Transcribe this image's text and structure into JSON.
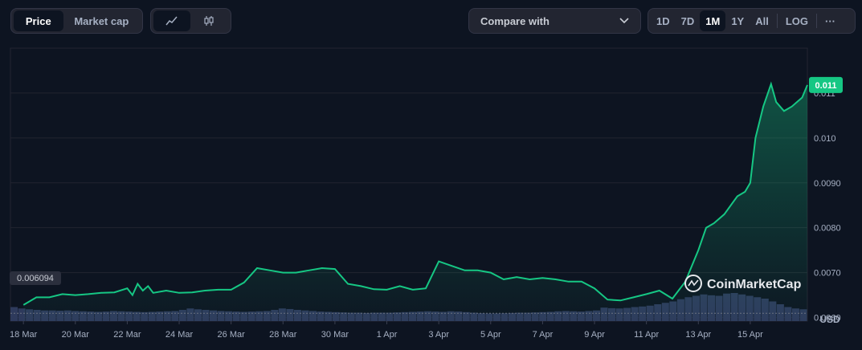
{
  "toolbar": {
    "tabs": [
      "Price",
      "Market cap"
    ],
    "active_tab": "Price",
    "chart_types": [
      "line-chart-icon",
      "candlestick-icon"
    ],
    "compare_label": "Compare with",
    "ranges": [
      "1D",
      "7D",
      "1M",
      "1Y",
      "All"
    ],
    "active_range": "1M",
    "log_label": "LOG",
    "more_label": "···"
  },
  "watermark": "CoinMarketCap",
  "currency": "USD",
  "colors": {
    "line": "#16c784",
    "background": "#0d1421",
    "volume": "#2e3a5c",
    "badge": "#16c784"
  },
  "chart_data": {
    "type": "area",
    "y_ticks": [
      {
        "value": 0.006,
        "label": "0.0060"
      },
      {
        "value": 0.007,
        "label": "0.0070"
      },
      {
        "value": 0.008,
        "label": "0.0080"
      },
      {
        "value": 0.009,
        "label": "0.0090"
      },
      {
        "value": 0.01,
        "label": "0.010"
      },
      {
        "value": 0.011,
        "label": "0.011"
      }
    ],
    "ylim": [
      0.00592,
      0.012
    ],
    "x_ticks": [
      "18 Mar",
      "20 Mar",
      "22 Mar",
      "24 Mar",
      "26 Mar",
      "28 Mar",
      "30 Mar",
      "1 Apr",
      "3 Apr",
      "5 Apr",
      "7 Apr",
      "9 Apr",
      "11 Apr",
      "13 Apr",
      "15 Apr"
    ],
    "x_domain_days": [
      -0.5,
      30.2
    ],
    "open_price_label": "0.006094",
    "open_price": 0.006094,
    "current_price_label": "0.011",
    "current_price": 0.01118,
    "series": [
      {
        "x": [
          0,
          0.5,
          1,
          1.5,
          2,
          2.5,
          3,
          3.5,
          4,
          4.2,
          4.4,
          4.6,
          4.8,
          5,
          5.5,
          6,
          6.5,
          7,
          7.5,
          8,
          8.5,
          9,
          9.5,
          10,
          10.5,
          11,
          11.5,
          12,
          12.5,
          13,
          13.5,
          14,
          14.5,
          15,
          15.5,
          16,
          16.5,
          17,
          17.5,
          18,
          18.5,
          19,
          19.5,
          20,
          20.5,
          21,
          21.5,
          22,
          22.5,
          23,
          23.5,
          24,
          24.5,
          25,
          25.5,
          26,
          26.3,
          26.6,
          27,
          27.5,
          27.8,
          28,
          28.2,
          28.5,
          28.8,
          29,
          29.3,
          29.6,
          30,
          30.2
        ],
        "y": [
          0.00628,
          0.00645,
          0.00645,
          0.00652,
          0.0065,
          0.00652,
          0.00655,
          0.00656,
          0.00665,
          0.0065,
          0.00675,
          0.0066,
          0.0067,
          0.00655,
          0.0066,
          0.00655,
          0.00656,
          0.0066,
          0.00662,
          0.00662,
          0.00678,
          0.0071,
          0.00705,
          0.007,
          0.007,
          0.00705,
          0.0071,
          0.00708,
          0.00675,
          0.0067,
          0.00663,
          0.00662,
          0.0067,
          0.00662,
          0.00665,
          0.00725,
          0.00715,
          0.00705,
          0.00705,
          0.007,
          0.00685,
          0.0069,
          0.00685,
          0.00688,
          0.00685,
          0.0068,
          0.0068,
          0.00665,
          0.0064,
          0.00638,
          0.00645,
          0.00652,
          0.0066,
          0.00642,
          0.0068,
          0.0075,
          0.008,
          0.0081,
          0.0083,
          0.0087,
          0.0088,
          0.009,
          0.01,
          0.0107,
          0.0112,
          0.0108,
          0.0106,
          0.0107,
          0.0109,
          0.01118
        ]
      }
    ],
    "volume": [
      0.5,
      0.45,
      0.42,
      0.4,
      0.38,
      0.38,
      0.37,
      0.38,
      0.36,
      0.35,
      0.34,
      0.33,
      0.34,
      0.36,
      0.35,
      0.34,
      0.33,
      0.32,
      0.33,
      0.34,
      0.35,
      0.36,
      0.4,
      0.45,
      0.42,
      0.4,
      0.38,
      0.36,
      0.35,
      0.34,
      0.33,
      0.34,
      0.35,
      0.36,
      0.4,
      0.45,
      0.43,
      0.4,
      0.38,
      0.36,
      0.34,
      0.33,
      0.32,
      0.31,
      0.3,
      0.3,
      0.29,
      0.3,
      0.3,
      0.3,
      0.31,
      0.32,
      0.33,
      0.34,
      0.35,
      0.34,
      0.33,
      0.35,
      0.34,
      0.32,
      0.3,
      0.28,
      0.27,
      0.27,
      0.28,
      0.29,
      0.3,
      0.3,
      0.31,
      0.32,
      0.33,
      0.35,
      0.36,
      0.35,
      0.34,
      0.36,
      0.38,
      0.48,
      0.46,
      0.45,
      0.47,
      0.5,
      0.52,
      0.55,
      0.6,
      0.65,
      0.7,
      0.78,
      0.85,
      0.9,
      0.95,
      0.92,
      0.9,
      0.98,
      1.0,
      0.95,
      0.9,
      0.85,
      0.8,
      0.7,
      0.6,
      0.5,
      0.45,
      0.42
    ]
  }
}
